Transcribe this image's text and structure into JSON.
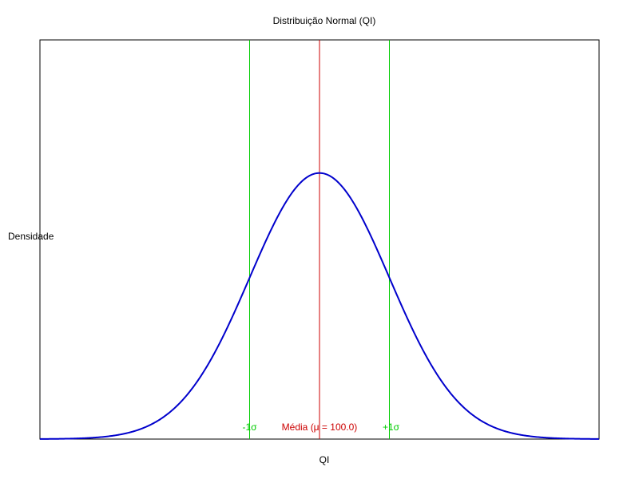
{
  "chart_data": {
    "type": "line",
    "title": "Distribuição Normal (QI)",
    "xlabel": "QI",
    "ylabel": "Densidade",
    "mean": 100.0,
    "sd": 15,
    "xlim": [
      40,
      160
    ],
    "ylim": [
      0,
      0.0399
    ],
    "grid": false,
    "legend": "none",
    "series": [
      {
        "kind": "normal-pdf",
        "color": "#0000cc"
      }
    ],
    "vlines": [
      {
        "x": 85,
        "label": "-1σ",
        "color": "#00cc00"
      },
      {
        "x": 100,
        "label": "Média (μ = 100.0)",
        "color": "#cc0000"
      },
      {
        "x": 115,
        "label": "+1σ",
        "color": "#00cc00"
      }
    ]
  }
}
